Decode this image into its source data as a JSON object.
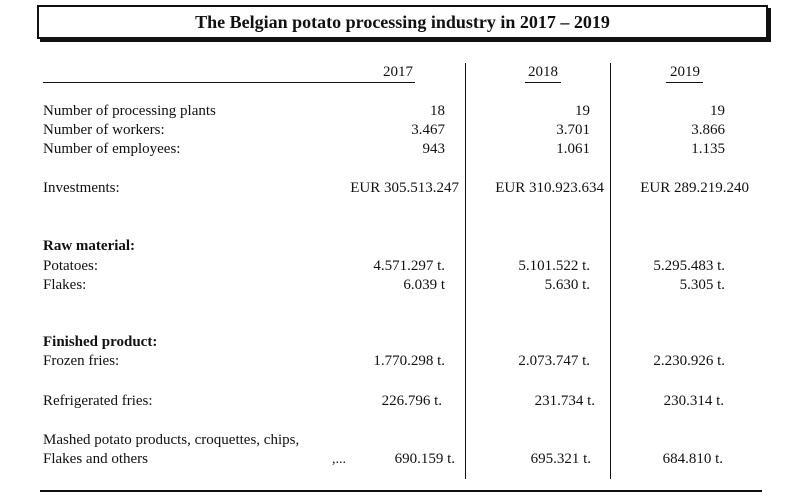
{
  "title": "The Belgian potato processing industry in 2017 – 2019",
  "years": [
    "2017",
    "2018",
    "2019"
  ],
  "rows": {
    "plants": {
      "label": "Number of processing plants",
      "values": [
        "18",
        "19",
        "19"
      ]
    },
    "workers": {
      "label": "Number of workers:",
      "values": [
        "3.467",
        "3.701",
        "3.866"
      ]
    },
    "employees": {
      "label": "Number of employees:",
      "values": [
        "943",
        "1.061",
        "1.135"
      ]
    },
    "investments": {
      "label": "Investments:",
      "values": [
        "EUR 305.513.247",
        "EUR 310.923.634",
        "EUR 289.219.240"
      ]
    },
    "raw_heading": "Raw material:",
    "potatoes": {
      "label": "Potatoes:",
      "values": [
        "4.571.297 t.",
        "5.101.522 t.",
        "5.295.483 t."
      ]
    },
    "flakes": {
      "label": "Flakes:",
      "values": [
        "6.039 t",
        "5.630 t.",
        "5.305 t."
      ]
    },
    "finished_heading": "Finished product:",
    "frozen": {
      "label": "Frozen fries:",
      "values": [
        "1.770.298 t.",
        "2.073.747 t.",
        "2.230.926 t."
      ]
    },
    "refrigerated": {
      "label": "Refrigerated fries:",
      "values": [
        "226.796 t.",
        "231.734 t.",
        "230.314 t."
      ]
    },
    "mashed": {
      "label_line1": "Mashed potato products, croquettes, chips,",
      "label_line2": "Flakes and others",
      "dots": ",...",
      "values": [
        "690.159 t.",
        "695.321 t.",
        "684.810 t."
      ]
    }
  }
}
